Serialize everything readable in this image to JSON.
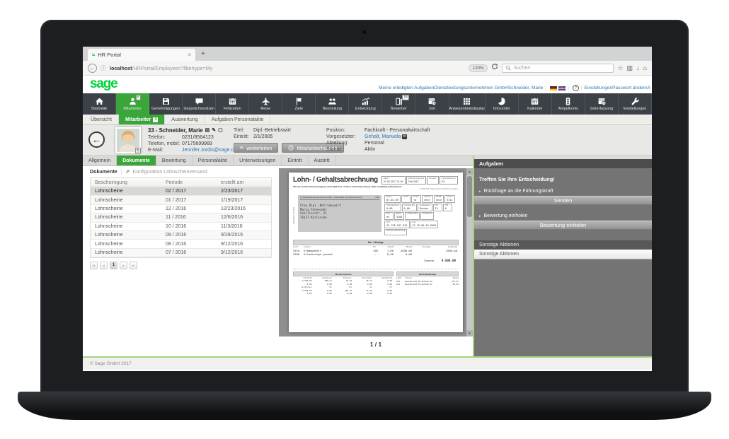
{
  "browser": {
    "tab_title": "HR Portal",
    "close_tab": "×",
    "new_tab": "+",
    "back_arrow": "←",
    "url_host": "localhost",
    "url_path": "/HRPortal/Employees?filtertype=My",
    "zoom_level": "120%",
    "search_placeholder": "Suchen"
  },
  "header": {
    "logo": "sage",
    "links_left": [
      {
        "label": "Meine erledigten Aufgaben"
      },
      {
        "label": "Dienstleistungsunternehmen GmbH"
      },
      {
        "label": "Schneider, Marie"
      }
    ],
    "links_right": [
      {
        "label": "Einstellungen"
      },
      {
        "label": "Passwort ändern"
      },
      {
        "label": "A"
      }
    ]
  },
  "nav": {
    "items": [
      {
        "label": "Startseite",
        "icon": "home-icon"
      },
      {
        "label": "Mitarbeiter",
        "icon": "person-icon",
        "active": true,
        "badge": "6"
      },
      {
        "label": "Genehmigungen",
        "icon": "save-icon"
      },
      {
        "label": "Gesprächsnotizen",
        "icon": "chat-icon"
      },
      {
        "label": "Fehlzeiten",
        "icon": "calendar-icon"
      },
      {
        "label": "Reise",
        "icon": "plane-icon"
      },
      {
        "label": "Ziele",
        "icon": "flag-icon"
      },
      {
        "label": "Beurteilung",
        "icon": "people-icon"
      },
      {
        "label": "Entwicklung",
        "icon": "chart-icon"
      },
      {
        "label": "Bewerber",
        "icon": "door-icon",
        "badge": "16"
      },
      {
        "label": "Zeit",
        "icon": "calendar-clock-icon"
      },
      {
        "label": "Anwesenheitsdisplay",
        "icon": "grid-icon"
      },
      {
        "label": "Infocenter",
        "icon": "pie-icon"
      },
      {
        "label": "Kalender",
        "icon": "calendar-icon"
      },
      {
        "label": "Ampelkonto",
        "icon": "traffic-light-icon"
      },
      {
        "label": "Zeiterfassung",
        "icon": "calendar-clock-icon"
      },
      {
        "label": "Einstellungen",
        "icon": "wrench-icon"
      }
    ]
  },
  "subnav": {
    "items": [
      {
        "label": "Übersicht"
      },
      {
        "label": "Mitarbeiter",
        "active": true,
        "badge": "4"
      },
      {
        "label": "Auswertung"
      },
      {
        "label": "Aufgaben Personalakte"
      }
    ]
  },
  "employee": {
    "name": "33 - Schneider, Marie",
    "phone_label": "Telefon:",
    "phone": "0231/8564123",
    "mobile_label": "Telefon, mobil:",
    "mobile": "07175699969",
    "email_label": "E-Mail:",
    "email": "Jennifer.Jordis@sage.com",
    "title_label": "Titel:",
    "title": "Dipl.-Betriebswirt",
    "entry_label": "Eintritt:",
    "entry": "2/1/2005",
    "forward_button": "weiterleiten",
    "history_button": "Mitarbeiterhistorie",
    "position_label": "Position:",
    "position": "Fachkraft - Personalwirtschaft",
    "supervisor_label": "Vorgesetzter:",
    "supervisor": "Gehalt, Manuela",
    "department_label": "Abteilung:",
    "department": "Personal",
    "status_label": "Status:",
    "status": "Aktiv"
  },
  "tabs": {
    "items": [
      {
        "label": "Allgemein"
      },
      {
        "label": "Dokumente",
        "active": true
      },
      {
        "label": "Bewertung"
      },
      {
        "label": "Personalakte"
      },
      {
        "label": "Unterweisungen"
      },
      {
        "label": "Eintritt"
      },
      {
        "label": "Austritt"
      }
    ]
  },
  "documents": {
    "panel_title": "Dokumente",
    "config_link": "Konfiguration Lohnscheinversand",
    "columns": [
      "Bescheinigung",
      "Periode",
      "erstellt am"
    ],
    "rows": [
      {
        "type": "Lohnscheine",
        "period": "02 / 2017",
        "created": "2/23/2017",
        "selected": true
      },
      {
        "type": "Lohnscheine",
        "period": "01 / 2017",
        "created": "1/19/2017"
      },
      {
        "type": "Lohnscheine",
        "period": "12 / 2016",
        "created": "12/23/2016"
      },
      {
        "type": "Lohnscheine",
        "period": "11 / 2016",
        "created": "12/6/2016"
      },
      {
        "type": "Lohnscheine",
        "period": "10 / 2016",
        "created": "11/3/2016"
      },
      {
        "type": "Lohnscheine",
        "period": "09 / 2016",
        "created": "9/28/2016"
      },
      {
        "type": "Lohnscheine",
        "period": "08 / 2016",
        "created": "9/12/2016"
      },
      {
        "type": "Lohnscheine",
        "period": "07 / 2016",
        "created": "9/12/2016"
      }
    ],
    "page": "1"
  },
  "payslip": {
    "title": "Lohn- / Gehaltsabrechnung",
    "meta": [
      {
        "label": "Datum",
        "value": "21.02.2017 11:40"
      },
      {
        "label": "Abrechnungsmonat",
        "value": "Feb 2017"
      },
      {
        "label": "Korrektur",
        "value": ""
      },
      {
        "label": "Personalnummer",
        "value": "33"
      }
    ],
    "note": "Gilt als Verdienstbescheinigung nach §108 Abs. 3 Satz 1 Gewerbeordnung. Bitte sorgfältig aufbewahren!",
    "copyright": "© 1996-2017 Sage GmbH. Nachdruck verboten.",
    "sender_label": "Arbeitgeber-anschrift",
    "employer": "[T] Dienstleistungsunternehmen GmbH · Lindenstraße 510 44228 Dortmund",
    "postcode": "1000",
    "address": [
      "Frau Dipl.-Betriebswirt",
      "Maria Schneider",
      "Schillerstr. 21",
      "76137 Karlsruhe"
    ],
    "fields": [
      {
        "label": "Eintritt",
        "value": "01.02.05"
      },
      {
        "label": "Austritt",
        "value": ""
      },
      {
        "label": "PV-Zus.",
        "value": "ja"
      },
      {
        "label": "Gleitzone",
        "value": "nein"
      },
      {
        "label": "MehrfB.",
        "value": "nein"
      },
      {
        "label": "St-Schl.",
        "value": "5111"
      },
      {
        "label": "Freibetrag Monat",
        "value": "0,00"
      },
      {
        "label": "Freibetrag Jahr",
        "value": "0,00"
      },
      {
        "label": "Krankenkasse",
        "value": "Barmer"
      },
      {
        "label": "StKl.",
        "value": "IV"
      },
      {
        "label": "KFB",
        "value": "0"
      },
      {
        "label": "Konf.",
        "value": "ev"
      },
      {
        "label": "BGRS",
        "value": "3204"
      },
      {
        "label": "Urlaub Anfang",
        "value": ""
      },
      {
        "label": "Urlaub Ende",
        "value": ""
      },
      {
        "label": "Id.Nr.",
        "value": "25 198 547 034"
      },
      {
        "label": "Gem.",
        "value": "23 16.05.65 8564"
      },
      {
        "label": "Grund der Unterbrechung",
        "value": ""
      }
    ],
    "be_abzuege": {
      "header": "Be- / Abzüge",
      "columns": [
        "LA/St",
        "Lohnart",
        "PS",
        "Anzahl",
        "Betrag",
        "Zuschlag",
        "Endbetrag"
      ],
      "rows": [
        [
          "2010",
          "Stammgehalt",
          "100",
          "1,00",
          "4500,00",
          "",
          "4500,00"
        ],
        [
          "2300",
          "Urlaubstage gesamt",
          "---",
          "8,00",
          "0,00",
          "",
          ""
        ]
      ],
      "sum_label": "Summe:",
      "sum": "4.500,00"
    },
    "monatssummen": {
      "header": "Monatssummen",
      "columns": [
        "Lfd./Jd.Br",
        "Lohnsteuer",
        "Kirchenst.",
        "Soli-Zuschl.",
        "Pauschal-St"
      ],
      "rows": [
        [
          "4.500,00",
          "848,41",
          "76,35",
          "46,74",
          "0,00"
        ],
        [
          "0,00",
          "0,00",
          "0,00",
          "0,00",
          "0,00"
        ]
      ],
      "columns2": [
        "St-pfl.Brutto",
        "KV",
        "RV",
        "AV",
        "PV"
      ],
      "rows2": [
        [
          "4.500,00",
          "0,00",
          "420,75",
          "67,50",
          "0,00"
        ],
        [
          "0,00",
          "0,00",
          "0,00",
          "0,00",
          "0,00"
        ]
      ]
    },
    "netto": {
      "header": "Netto-Be/Abzüge",
      "columns": [
        "LA/St",
        "Lohnart",
        "Betrag"
      ],
      "rows": [
        [
          "912",
          "Auszahlung HO-Guthab KV",
          "217,55"
        ],
        [
          "911",
          "Auszahlung HO-Guthab PV",
          "55,46"
        ]
      ]
    }
  },
  "page_indicator": "1 / 1",
  "tasks": {
    "header": "Aufgaben",
    "decision": "Treffen Sie Ihre Entscheidung!",
    "option1": "Rückfrage an die Führungskraft",
    "send_button": "Senden",
    "option2": "Bewertung einholen",
    "review_button": "Bewertung einholen",
    "other_header": "Sonstige Aktionen",
    "other_dropdown": "Sonstige Aktionen"
  },
  "footer": {
    "copyright": "© Sage GmbH 2017"
  }
}
